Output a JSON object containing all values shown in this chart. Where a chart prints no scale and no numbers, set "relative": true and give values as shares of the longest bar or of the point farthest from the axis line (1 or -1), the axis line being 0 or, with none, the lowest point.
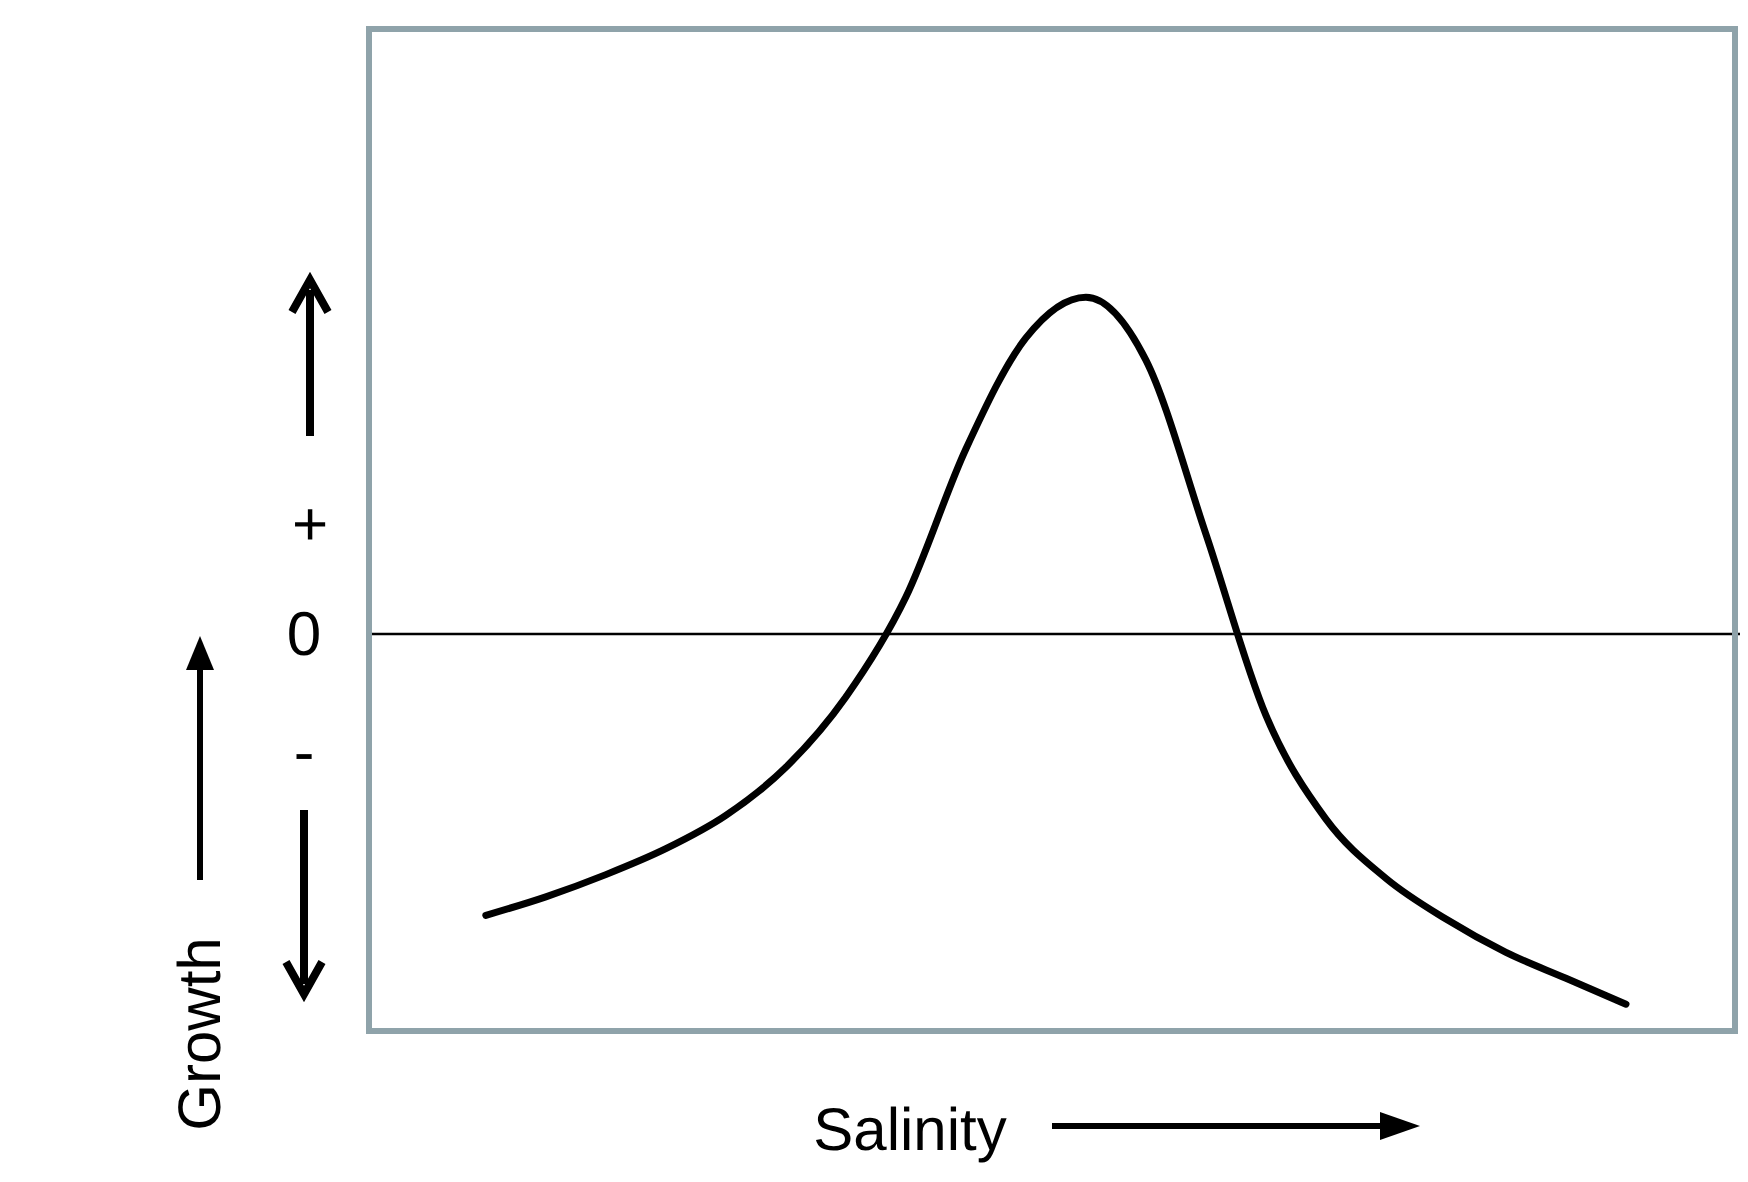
{
  "chart_data": {
    "type": "line",
    "relative": true,
    "xlabel": "Salinity",
    "ylabel": "Growth",
    "annotations": [
      "+",
      "0",
      "-"
    ],
    "categories": [
      null,
      null,
      null,
      null,
      null,
      null,
      null,
      null,
      null,
      null,
      null,
      null,
      null,
      null,
      null,
      null,
      null,
      null,
      null,
      null
    ],
    "series": [
      {
        "color": "#000000",
        "values": [
          -0.76,
          -0.71,
          -0.65,
          -0.58,
          -0.49,
          -0.36,
          -0.17,
          0.1,
          0.5,
          0.8,
          0.91,
          0.74,
          0.27,
          -0.22,
          -0.5,
          -0.66,
          -0.77,
          -0.86,
          -0.93,
          -1
        ]
      }
    ],
    "marker": "none",
    "line_style": "solid"
  }
}
